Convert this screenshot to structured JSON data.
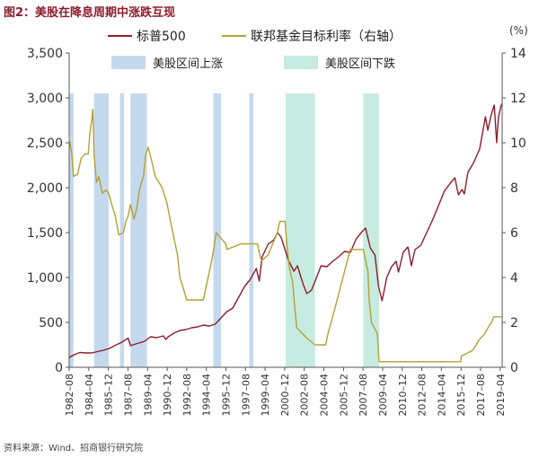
{
  "title": "图2：美股在降息周期中涨跌互现",
  "source": "资料来源：Wind、招商银行研究院",
  "colors": {
    "sp500": "#8c1d2c",
    "fed": "#b5a133",
    "band_up": "#c5d9ee",
    "band_down": "#c6ebe0",
    "axis_text": "#333333",
    "axis_line": "#555555"
  },
  "chart_data": {
    "type": "line",
    "y_left": {
      "ylim": [
        0,
        3500
      ],
      "ticks": [
        "0",
        "500",
        "1,000",
        "1,500",
        "2,000",
        "2,500",
        "3,000",
        "3,500"
      ],
      "tick_values": [
        0,
        500,
        1000,
        1500,
        2000,
        2500,
        3000,
        3500
      ]
    },
    "y_right": {
      "ylim": [
        0,
        14
      ],
      "unit_label": "(%)",
      "ticks": [
        "0",
        "2",
        "4",
        "6",
        "8",
        "10",
        "12",
        "14"
      ],
      "tick_values": [
        0,
        2,
        4,
        6,
        8,
        10,
        12,
        14
      ]
    },
    "x_range": [
      1982.58,
      2019.42
    ],
    "x_ticks": [
      {
        "label": "1982–08",
        "x": 1982.58
      },
      {
        "label": "1984–04",
        "x": 1984.25
      },
      {
        "label": "1985–12",
        "x": 1985.92
      },
      {
        "label": "1987–08",
        "x": 1987.58
      },
      {
        "label": "1989–04",
        "x": 1989.25
      },
      {
        "label": "1990–12",
        "x": 1990.92
      },
      {
        "label": "1992–08",
        "x": 1992.58
      },
      {
        "label": "1994–04",
        "x": 1994.25
      },
      {
        "label": "1995–12",
        "x": 1995.92
      },
      {
        "label": "1997–08",
        "x": 1997.58
      },
      {
        "label": "1999–04",
        "x": 1999.25
      },
      {
        "label": "2000–12",
        "x": 2000.92
      },
      {
        "label": "2002–08",
        "x": 2002.58
      },
      {
        "label": "2004–04",
        "x": 2004.25
      },
      {
        "label": "2005–12",
        "x": 2005.92
      },
      {
        "label": "2007–08",
        "x": 2007.58
      },
      {
        "label": "2009–04",
        "x": 2009.25
      },
      {
        "label": "2010–12",
        "x": 2010.92
      },
      {
        "label": "2012–08",
        "x": 2012.58
      },
      {
        "label": "2014–04",
        "x": 2014.25
      },
      {
        "label": "2015–12",
        "x": 2015.92
      },
      {
        "label": "2017–08",
        "x": 2017.58
      },
      {
        "label": "2019–04",
        "x": 2019.25
      }
    ],
    "legend": [
      {
        "key": "sp500",
        "label": "标普500",
        "kind": "line"
      },
      {
        "key": "fed",
        "label": "联邦基金目标利率（右轴）",
        "kind": "line"
      },
      {
        "key": "band_up",
        "label": "美股区间上涨",
        "kind": "band"
      },
      {
        "key": "band_down",
        "label": "美股区间下跌",
        "kind": "band"
      }
    ],
    "bands_up": [
      [
        1982.58,
        1982.95
      ],
      [
        1984.7,
        1985.95
      ],
      [
        1986.9,
        1987.25
      ],
      [
        1987.8,
        1989.2
      ],
      [
        1994.85,
        1995.5
      ],
      [
        1997.9,
        1998.25
      ]
    ],
    "bands_down": [
      [
        2001.0,
        2003.5
      ],
      [
        2007.6,
        2008.95
      ]
    ],
    "series": [
      {
        "key": "sp500",
        "name": "标普500",
        "axis": "left",
        "points": [
          [
            1982.58,
            110
          ],
          [
            1983.0,
            140
          ],
          [
            1983.5,
            165
          ],
          [
            1984.0,
            160
          ],
          [
            1984.5,
            160
          ],
          [
            1985.0,
            175
          ],
          [
            1985.5,
            190
          ],
          [
            1986.0,
            210
          ],
          [
            1986.5,
            245
          ],
          [
            1987.0,
            275
          ],
          [
            1987.6,
            325
          ],
          [
            1987.8,
            240
          ],
          [
            1988.0,
            250
          ],
          [
            1988.5,
            270
          ],
          [
            1989.0,
            290
          ],
          [
            1989.5,
            340
          ],
          [
            1990.0,
            330
          ],
          [
            1990.6,
            350
          ],
          [
            1990.8,
            310
          ],
          [
            1991.0,
            340
          ],
          [
            1991.5,
            380
          ],
          [
            1992.0,
            410
          ],
          [
            1992.5,
            420
          ],
          [
            1993.0,
            440
          ],
          [
            1993.5,
            450
          ],
          [
            1994.0,
            470
          ],
          [
            1994.5,
            460
          ],
          [
            1995.0,
            480
          ],
          [
            1995.5,
            550
          ],
          [
            1996.0,
            620
          ],
          [
            1996.5,
            660
          ],
          [
            1997.0,
            780
          ],
          [
            1997.5,
            900
          ],
          [
            1998.0,
            980
          ],
          [
            1998.5,
            1100
          ],
          [
            1998.75,
            960
          ],
          [
            1999.0,
            1230
          ],
          [
            1999.5,
            1370
          ],
          [
            2000.0,
            1420
          ],
          [
            2000.3,
            1500
          ],
          [
            2000.6,
            1450
          ],
          [
            2000.9,
            1330
          ],
          [
            2001.2,
            1200
          ],
          [
            2001.7,
            1070
          ],
          [
            2002.0,
            1130
          ],
          [
            2002.5,
            920
          ],
          [
            2002.8,
            820
          ],
          [
            2003.2,
            860
          ],
          [
            2003.6,
            990
          ],
          [
            2004.0,
            1130
          ],
          [
            2004.5,
            1120
          ],
          [
            2005.0,
            1180
          ],
          [
            2005.5,
            1230
          ],
          [
            2006.0,
            1290
          ],
          [
            2006.5,
            1280
          ],
          [
            2007.0,
            1430
          ],
          [
            2007.5,
            1510
          ],
          [
            2007.8,
            1550
          ],
          [
            2008.2,
            1330
          ],
          [
            2008.6,
            1250
          ],
          [
            2008.9,
            900
          ],
          [
            2009.2,
            740
          ],
          [
            2009.6,
            1000
          ],
          [
            2010.0,
            1120
          ],
          [
            2010.4,
            1180
          ],
          [
            2010.6,
            1060
          ],
          [
            2011.0,
            1280
          ],
          [
            2011.4,
            1340
          ],
          [
            2011.7,
            1130
          ],
          [
            2012.0,
            1310
          ],
          [
            2012.5,
            1360
          ],
          [
            2013.0,
            1500
          ],
          [
            2013.5,
            1640
          ],
          [
            2014.0,
            1800
          ],
          [
            2014.5,
            1960
          ],
          [
            2015.0,
            2050
          ],
          [
            2015.4,
            2110
          ],
          [
            2015.7,
            1920
          ],
          [
            2016.0,
            1980
          ],
          [
            2016.2,
            1930
          ],
          [
            2016.5,
            2170
          ],
          [
            2017.0,
            2280
          ],
          [
            2017.5,
            2430
          ],
          [
            2018.0,
            2790
          ],
          [
            2018.2,
            2640
          ],
          [
            2018.5,
            2820
          ],
          [
            2018.75,
            2920
          ],
          [
            2018.95,
            2500
          ],
          [
            2019.1,
            2780
          ],
          [
            2019.3,
            2900
          ],
          [
            2019.42,
            2940
          ]
        ]
      },
      {
        "key": "fed",
        "name": "联邦基金目标利率（右轴）",
        "axis": "right",
        "points": [
          [
            1982.58,
            10.25
          ],
          [
            1982.8,
            9.5
          ],
          [
            1982.95,
            8.5
          ],
          [
            1983.3,
            8.6
          ],
          [
            1983.6,
            9.3
          ],
          [
            1983.9,
            9.5
          ],
          [
            1984.2,
            9.5
          ],
          [
            1984.35,
            10.5
          ],
          [
            1984.5,
            11.0
          ],
          [
            1984.6,
            11.5
          ],
          [
            1984.7,
            9.5
          ],
          [
            1984.9,
            8.25
          ],
          [
            1985.1,
            8.5
          ],
          [
            1985.4,
            7.75
          ],
          [
            1985.7,
            7.9
          ],
          [
            1985.95,
            7.75
          ],
          [
            1986.2,
            7.25
          ],
          [
            1986.5,
            6.75
          ],
          [
            1986.8,
            5.9
          ],
          [
            1987.2,
            6.0
          ],
          [
            1987.4,
            6.5
          ],
          [
            1987.6,
            6.75
          ],
          [
            1987.8,
            7.25
          ],
          [
            1988.1,
            6.6
          ],
          [
            1988.3,
            7.0
          ],
          [
            1988.6,
            8.0
          ],
          [
            1988.9,
            8.5
          ],
          [
            1989.1,
            9.5
          ],
          [
            1989.3,
            9.8
          ],
          [
            1989.6,
            9.2
          ],
          [
            1989.9,
            8.5
          ],
          [
            1990.2,
            8.25
          ],
          [
            1990.5,
            8.0
          ],
          [
            1990.9,
            7.3
          ],
          [
            1991.2,
            6.5
          ],
          [
            1991.5,
            5.75
          ],
          [
            1991.8,
            5.0
          ],
          [
            1992.0,
            4.0
          ],
          [
            1992.3,
            3.5
          ],
          [
            1992.58,
            3.0
          ],
          [
            1993.5,
            3.0
          ],
          [
            1994.0,
            3.0
          ],
          [
            1994.2,
            3.5
          ],
          [
            1994.5,
            4.25
          ],
          [
            1994.8,
            5.0
          ],
          [
            1995.1,
            6.0
          ],
          [
            1995.5,
            5.75
          ],
          [
            1995.9,
            5.5
          ],
          [
            1996.0,
            5.25
          ],
          [
            1997.2,
            5.5
          ],
          [
            1998.6,
            5.5
          ],
          [
            1998.8,
            5.0
          ],
          [
            1998.95,
            4.75
          ],
          [
            1999.5,
            5.0
          ],
          [
            1999.9,
            5.5
          ],
          [
            2000.3,
            6.0
          ],
          [
            2000.5,
            6.5
          ],
          [
            2000.95,
            6.5
          ],
          [
            2001.1,
            5.5
          ],
          [
            2001.3,
            4.5
          ],
          [
            2001.6,
            3.75
          ],
          [
            2001.8,
            2.5
          ],
          [
            2001.95,
            1.75
          ],
          [
            2002.9,
            1.25
          ],
          [
            2003.5,
            1.0
          ],
          [
            2004.4,
            1.0
          ],
          [
            2004.6,
            1.5
          ],
          [
            2005.0,
            2.25
          ],
          [
            2005.5,
            3.25
          ],
          [
            2006.0,
            4.25
          ],
          [
            2006.5,
            5.25
          ],
          [
            2007.6,
            5.25
          ],
          [
            2007.8,
            4.75
          ],
          [
            2008.0,
            4.25
          ],
          [
            2008.1,
            3.0
          ],
          [
            2008.3,
            2.0
          ],
          [
            2008.8,
            1.5
          ],
          [
            2008.95,
            0.25
          ],
          [
            2015.9,
            0.25
          ],
          [
            2015.95,
            0.5
          ],
          [
            2016.9,
            0.75
          ],
          [
            2017.2,
            1.0
          ],
          [
            2017.5,
            1.25
          ],
          [
            2017.95,
            1.5
          ],
          [
            2018.2,
            1.75
          ],
          [
            2018.5,
            2.0
          ],
          [
            2018.7,
            2.25
          ],
          [
            2018.95,
            2.25
          ],
          [
            2019.42,
            2.25
          ]
        ]
      }
    ]
  }
}
